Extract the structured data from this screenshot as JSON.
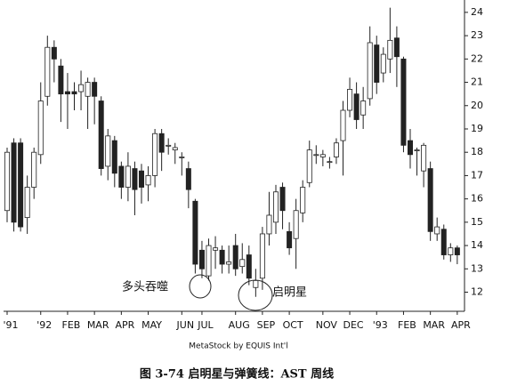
{
  "chart_data": {
    "type": "candlestick",
    "categories": [
      "'91",
      null,
      null,
      null,
      null,
      "'92",
      null,
      null,
      null,
      "FEB",
      null,
      null,
      null,
      "MAR",
      null,
      null,
      null,
      "APR",
      null,
      null,
      null,
      "MAY",
      null,
      null,
      null,
      null,
      "JUN",
      null,
      null,
      "JUL",
      null,
      null,
      null,
      null,
      "AUG",
      null,
      null,
      null,
      "SEP",
      null,
      null,
      null,
      "OCT",
      null,
      null,
      null,
      null,
      "NOV",
      null,
      null,
      null,
      "DEC",
      null,
      null,
      null,
      "'93",
      null,
      null,
      null,
      "FEB",
      null,
      null,
      null,
      "MAR",
      null,
      null,
      null,
      "APR"
    ],
    "open": [
      15.5,
      18.4,
      18.4,
      15.2,
      16.5,
      17.9,
      20.4,
      22.5,
      21.7,
      20.6,
      20.6,
      20.6,
      20.4,
      21.0,
      20.2,
      17.4,
      18.5,
      17.4,
      16.5,
      17.3,
      17.2,
      16.6,
      17.0,
      18.8,
      18.3,
      18.1,
      17.8,
      17.3,
      15.9,
      13.8,
      12.7,
      13.8,
      13.8,
      13.2,
      14.0,
      13.1,
      13.6,
      12.2,
      12.6,
      14.5,
      15.0,
      16.5,
      14.6,
      14.3,
      15.4,
      16.7,
      17.9,
      17.8,
      17.6,
      17.8,
      18.5,
      19.8,
      20.5,
      19.6,
      20.3,
      22.6,
      21.4,
      22.0,
      22.9,
      22.0,
      18.5,
      18.1,
      17.2,
      17.3,
      14.5,
      14.7,
      13.6,
      13.9
    ],
    "high": [
      18.2,
      18.6,
      18.6,
      17.0,
      18.2,
      21.0,
      23.0,
      22.8,
      22.0,
      21.4,
      21.0,
      21.5,
      21.2,
      21.2,
      20.4,
      19.0,
      18.7,
      17.6,
      18.0,
      17.6,
      17.5,
      17.4,
      19.0,
      19.0,
      18.6,
      18.4,
      18.0,
      17.6,
      16.0,
      14.2,
      14.3,
      14.4,
      14.0,
      14.0,
      14.5,
      14.1,
      14.0,
      13.0,
      14.8,
      16.3,
      16.6,
      16.7,
      15.0,
      16.0,
      16.8,
      18.5,
      18.3,
      18.1,
      17.8,
      18.6,
      20.2,
      21.2,
      21.0,
      20.8,
      23.4,
      23.0,
      22.5,
      24.2,
      23.4,
      22.1,
      19.0,
      18.2,
      18.4,
      17.6,
      15.2,
      14.9,
      14.1,
      14.0
    ],
    "low": [
      15.0,
      14.6,
      14.6,
      14.5,
      16.0,
      17.5,
      20.0,
      21.0,
      19.3,
      19.0,
      19.8,
      19.8,
      19.0,
      19.2,
      17.0,
      16.8,
      16.5,
      16.0,
      15.9,
      15.3,
      15.8,
      15.9,
      16.5,
      17.2,
      17.9,
      17.5,
      17.0,
      15.6,
      12.8,
      12.6,
      12.5,
      13.0,
      12.8,
      12.8,
      12.7,
      12.8,
      12.3,
      11.8,
      12.1,
      14.0,
      14.5,
      14.7,
      13.6,
      13.0,
      15.0,
      16.5,
      17.5,
      17.4,
      17.3,
      17.5,
      17.0,
      19.5,
      19.0,
      19.0,
      20.0,
      20.5,
      21.0,
      21.4,
      20.8,
      18.0,
      17.3,
      17.0,
      16.5,
      14.2,
      14.2,
      13.4,
      13.3,
      13.2
    ],
    "close": [
      18.0,
      15.0,
      14.8,
      16.5,
      18.0,
      20.2,
      22.5,
      22.0,
      20.5,
      20.5,
      20.5,
      20.9,
      21.0,
      20.4,
      17.3,
      18.7,
      17.1,
      16.5,
      17.4,
      16.4,
      16.5,
      17.0,
      18.8,
      18.0,
      18.3,
      18.2,
      17.8,
      16.4,
      13.2,
      13.0,
      14.0,
      13.9,
      13.2,
      13.3,
      13.0,
      13.4,
      12.6,
      12.5,
      14.5,
      15.3,
      16.3,
      15.5,
      13.9,
      15.5,
      16.5,
      18.1,
      17.9,
      17.9,
      17.6,
      18.4,
      19.8,
      20.7,
      19.4,
      20.2,
      22.7,
      21.0,
      22.2,
      22.8,
      22.1,
      18.3,
      17.9,
      18.1,
      18.3,
      14.6,
      14.8,
      13.6,
      13.9,
      13.6
    ],
    "ylim": [
      11.18,
      24.53
    ],
    "yticks": [
      12,
      13,
      14,
      15,
      16,
      17,
      18,
      19,
      20,
      21,
      22,
      23,
      24
    ],
    "annotations": [
      "多头吞噬",
      "启明星"
    ],
    "footer": "MetaStock by EQUIS Int'l",
    "caption": "图 3-74    启明星与弹簧线：AST 周线"
  }
}
